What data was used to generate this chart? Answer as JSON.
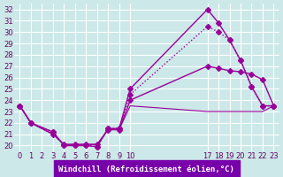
{
  "background_color": "#cce8e8",
  "grid_color": "#ffffff",
  "line_color": "#990099",
  "xlabel": "Windchill (Refroidissement éolien,°C)",
  "ylabel": "",
  "xlim": [
    -0.5,
    23.5
  ],
  "ylim": [
    19.5,
    32.5
  ],
  "yticks": [
    20,
    21,
    22,
    23,
    24,
    25,
    26,
    27,
    28,
    29,
    30,
    31,
    32
  ],
  "xticks": [
    0,
    1,
    2,
    3,
    4,
    5,
    6,
    7,
    8,
    9,
    10,
    17,
    18,
    19,
    20,
    21,
    22,
    23
  ],
  "lines": [
    {
      "x": [
        0,
        1,
        3,
        4,
        5,
        6,
        7,
        8,
        9,
        10,
        17,
        18,
        19,
        20,
        21,
        22,
        23
      ],
      "y": [
        23.5,
        22.0,
        21.2,
        20.0,
        20.0,
        20.0,
        19.9,
        21.5,
        21.5,
        25.0,
        32.0,
        30.8,
        29.3,
        27.5,
        25.2,
        23.5,
        23.5
      ],
      "style": "-",
      "marker": "D",
      "markersize": 3,
      "linewidth": 1.0
    },
    {
      "x": [
        0,
        1,
        3,
        4,
        5,
        6,
        7,
        8,
        9,
        10,
        17,
        18,
        19,
        20,
        21,
        22,
        23
      ],
      "y": [
        23.5,
        22.0,
        21.2,
        20.0,
        20.0,
        20.0,
        19.9,
        21.5,
        21.5,
        24.5,
        30.5,
        30.0,
        29.3,
        27.5,
        25.2,
        23.5,
        23.5
      ],
      "style": ":",
      "marker": "D",
      "markersize": 3,
      "linewidth": 1.0
    },
    {
      "x": [
        0,
        1,
        3,
        4,
        5,
        6,
        7,
        8,
        9,
        10,
        17,
        18,
        19,
        20,
        21,
        22,
        23
      ],
      "y": [
        23.5,
        22.0,
        21.0,
        20.1,
        20.1,
        20.1,
        20.1,
        21.4,
        21.4,
        24.0,
        27.0,
        26.8,
        26.6,
        26.5,
        26.3,
        25.8,
        23.5
      ],
      "style": "-",
      "marker": "D",
      "markersize": 3,
      "linewidth": 1.0
    },
    {
      "x": [
        0,
        1,
        3,
        4,
        5,
        6,
        7,
        8,
        9,
        10,
        17,
        18,
        19,
        20,
        21,
        22,
        23
      ],
      "y": [
        23.5,
        22.0,
        21.0,
        20.1,
        20.1,
        20.1,
        20.1,
        21.4,
        21.4,
        23.5,
        23.0,
        23.0,
        23.0,
        23.0,
        23.0,
        23.0,
        23.5
      ],
      "style": "-",
      "marker": null,
      "markersize": 3,
      "linewidth": 0.8
    }
  ]
}
